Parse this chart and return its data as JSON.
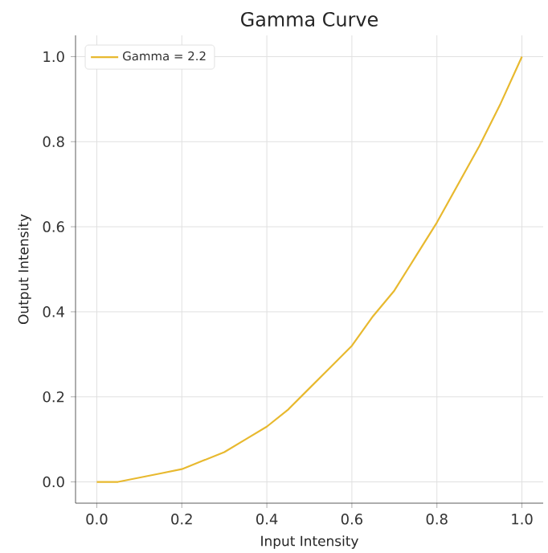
{
  "chart_data": {
    "type": "line",
    "title": "Gamma Curve",
    "xlabel": "Input Intensity",
    "ylabel": "Output Intensity",
    "x": [
      0,
      0.05,
      0.1,
      0.15,
      0.2,
      0.25,
      0.3,
      0.35,
      0.4,
      0.45,
      0.5,
      0.55,
      0.6,
      0.65,
      0.7,
      0.75,
      0.8,
      0.85,
      0.9,
      0.95,
      1.0
    ],
    "series": [
      {
        "name": "Gamma = 2.2",
        "color": "#e8b92f",
        "values": [
          0,
          0.0,
          0.01,
          0.02,
          0.03,
          0.05,
          0.07,
          0.1,
          0.13,
          0.17,
          0.22,
          0.27,
          0.32,
          0.39,
          0.45,
          0.53,
          0.61,
          0.7,
          0.79,
          0.89,
          1.0
        ]
      }
    ],
    "xlim": [
      -0.05,
      1.05
    ],
    "ylim": [
      -0.05,
      1.05
    ],
    "xticks": [
      {
        "value": 0,
        "label": "0.0"
      },
      0.2,
      0.4,
      0.6,
      0.8,
      {
        "value": 1,
        "label": "1.0"
      }
    ],
    "yticks": [
      {
        "value": 0,
        "label": "0.0"
      },
      0.2,
      0.4,
      0.6,
      0.8,
      {
        "value": 1,
        "label": "1.0"
      }
    ],
    "grid": true,
    "legend": "top left",
    "marker": "none",
    "line_style": "solid"
  }
}
